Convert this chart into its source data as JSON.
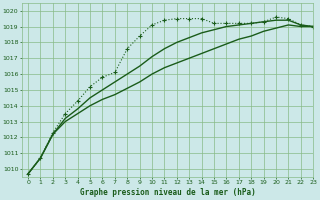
{
  "bg_color": "#cce8e8",
  "grid_color": "#88bb88",
  "line_color": "#1a5c1a",
  "title": "Graphe pression niveau de la mer (hPa)",
  "xlim": [
    -0.5,
    23
  ],
  "ylim": [
    1009.5,
    1020.5
  ],
  "yticks": [
    1010,
    1011,
    1012,
    1013,
    1014,
    1015,
    1016,
    1017,
    1018,
    1019,
    1020
  ],
  "xticks": [
    0,
    1,
    2,
    3,
    4,
    5,
    6,
    7,
    8,
    9,
    10,
    11,
    12,
    13,
    14,
    15,
    16,
    17,
    18,
    19,
    20,
    21,
    22,
    23
  ],
  "series": [
    {
      "x": [
        0,
        1,
        2,
        3,
        4,
        5,
        6,
        7,
        8,
        9,
        10,
        11,
        12,
        13,
        14,
        15,
        16,
        17,
        18,
        19,
        20,
        21,
        22,
        23
      ],
      "y": [
        1009.7,
        1010.7,
        1012.2,
        1013.0,
        1013.5,
        1014.0,
        1014.4,
        1014.7,
        1015.1,
        1015.5,
        1016.0,
        1016.4,
        1016.7,
        1017.0,
        1017.3,
        1017.6,
        1017.9,
        1018.2,
        1018.4,
        1018.7,
        1018.9,
        1019.1,
        1019.0,
        1019.0
      ],
      "marker": null,
      "lw": 1.0,
      "ls": "-"
    },
    {
      "x": [
        0,
        1,
        2,
        3,
        4,
        5,
        6,
        7,
        8,
        9,
        10,
        11,
        12,
        13,
        14,
        15,
        16,
        17,
        18,
        19,
        20,
        21,
        22,
        23
      ],
      "y": [
        1009.7,
        1010.7,
        1012.2,
        1013.2,
        1013.8,
        1014.5,
        1015.0,
        1015.5,
        1016.0,
        1016.5,
        1017.1,
        1017.6,
        1018.0,
        1018.3,
        1018.6,
        1018.8,
        1019.0,
        1019.1,
        1019.2,
        1019.3,
        1019.4,
        1019.4,
        1019.1,
        1019.0
      ],
      "marker": null,
      "lw": 1.0,
      "ls": "-"
    },
    {
      "x": [
        0,
        1,
        2,
        3,
        4,
        5,
        6,
        7,
        8,
        9,
        10,
        11,
        12,
        13,
        14,
        15,
        16,
        17,
        18,
        19,
        20,
        21,
        22,
        23
      ],
      "y": [
        1009.7,
        1010.7,
        1012.3,
        1013.5,
        1014.3,
        1015.2,
        1015.8,
        1016.1,
        1017.6,
        1018.4,
        1019.1,
        1019.4,
        1019.5,
        1019.5,
        1019.5,
        1019.2,
        1019.2,
        1019.2,
        1019.2,
        1019.3,
        1019.6,
        1019.5,
        1019.1,
        1019.0
      ],
      "marker": "+",
      "lw": 0.8,
      "ls": ":"
    }
  ]
}
